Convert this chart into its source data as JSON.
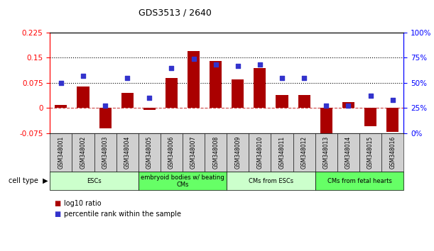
{
  "title": "GDS3513 / 2640",
  "samples": [
    "GSM348001",
    "GSM348002",
    "GSM348003",
    "GSM348004",
    "GSM348005",
    "GSM348006",
    "GSM348007",
    "GSM348008",
    "GSM348009",
    "GSM348010",
    "GSM348011",
    "GSM348012",
    "GSM348013",
    "GSM348014",
    "GSM348015",
    "GSM348016"
  ],
  "log10_ratio": [
    0.01,
    0.065,
    -0.062,
    0.045,
    -0.005,
    0.09,
    0.17,
    0.14,
    0.085,
    0.12,
    0.038,
    0.038,
    -0.09,
    0.018,
    -0.055,
    -0.072
  ],
  "percentile_rank": [
    50,
    57,
    27,
    55,
    35,
    65,
    74,
    68,
    67,
    68,
    55,
    55,
    27,
    27,
    37,
    33
  ],
  "ylim_left": [
    -0.075,
    0.225
  ],
  "ylim_right": [
    0,
    100
  ],
  "yticks_left": [
    -0.075,
    0,
    0.075,
    0.15,
    0.225
  ],
  "yticks_right": [
    0,
    25,
    50,
    75,
    100
  ],
  "hlines": [
    0.075,
    0.15
  ],
  "bar_color": "#aa0000",
  "dot_color": "#3333cc",
  "zero_line_color": "#cc4444",
  "cell_types": [
    {
      "label": "ESCs",
      "start": 0,
      "end": 3,
      "color": "#ccffcc"
    },
    {
      "label": "embryoid bodies w/ beating\nCMs",
      "start": 4,
      "end": 7,
      "color": "#66ff66"
    },
    {
      "label": "CMs from ESCs",
      "start": 8,
      "end": 11,
      "color": "#ccffcc"
    },
    {
      "label": "CMs from fetal hearts",
      "start": 12,
      "end": 15,
      "color": "#66ff66"
    }
  ],
  "legend_log10": "log10 ratio",
  "legend_pct": "percentile rank within the sample",
  "cell_type_label": "cell type",
  "bg_color": "#ffffff",
  "plot_bg_color": "#ffffff",
  "xtick_bg": "#d0d0d0"
}
